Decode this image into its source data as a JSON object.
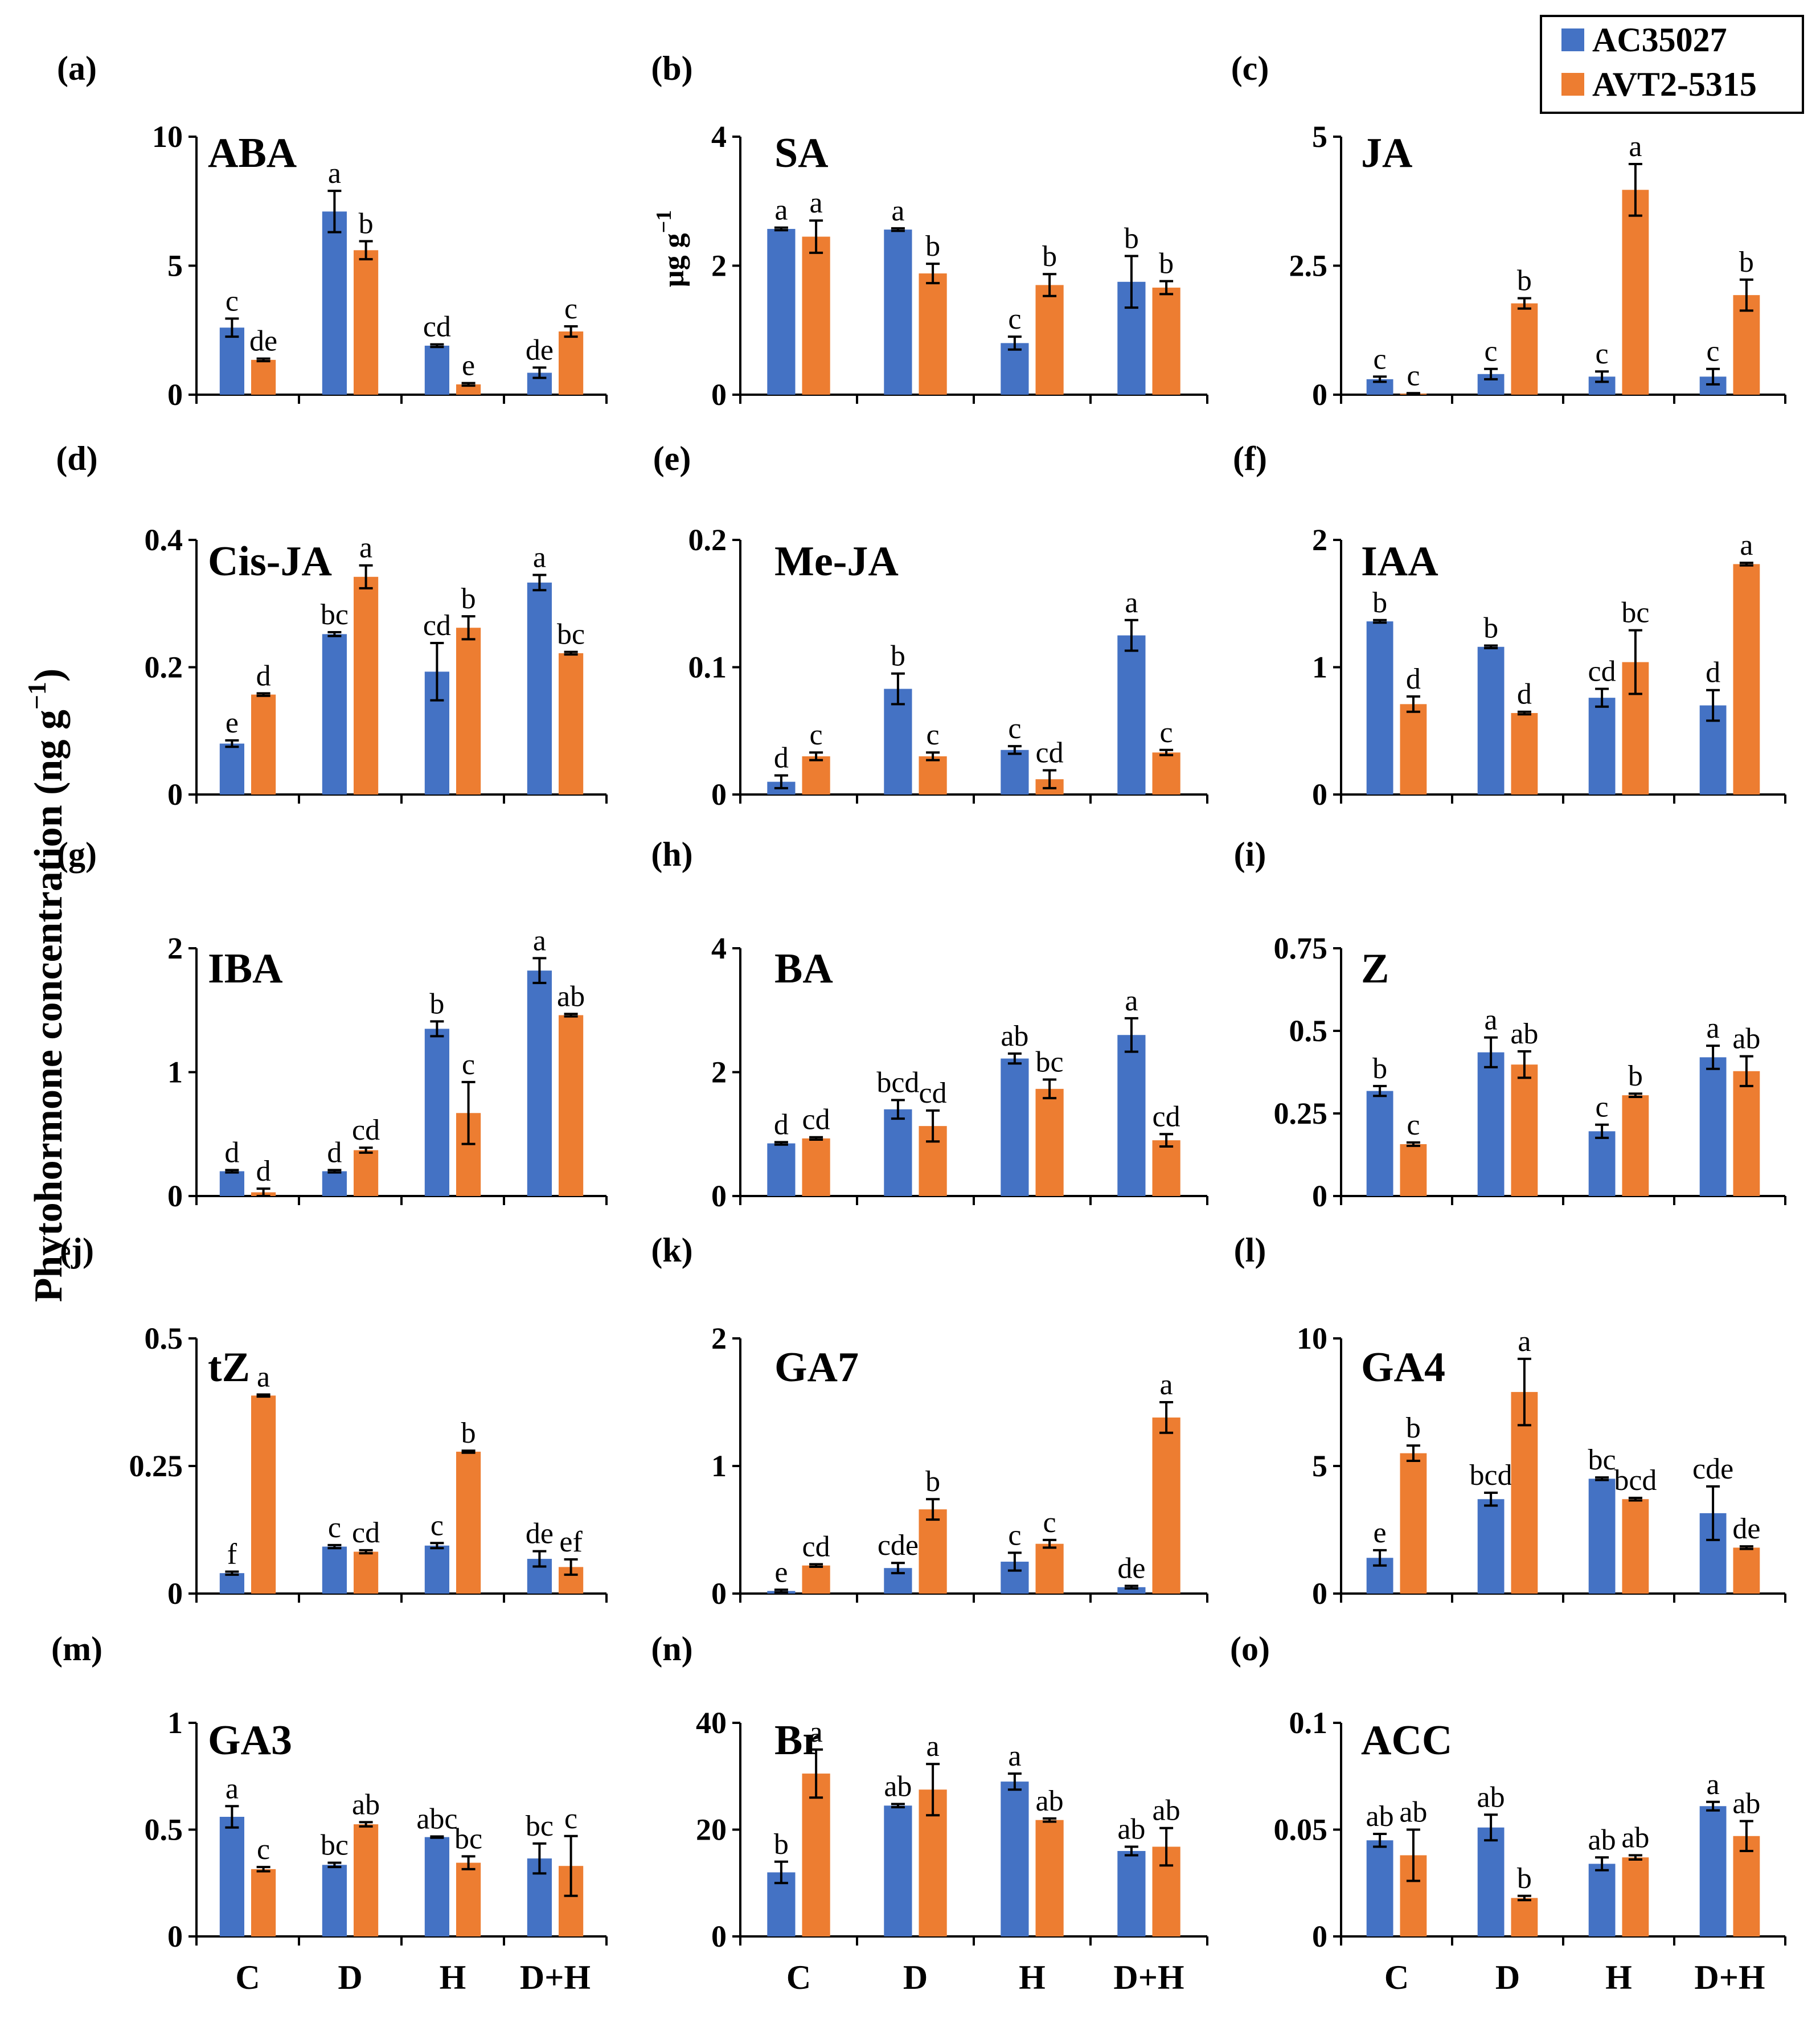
{
  "figure": {
    "y_axis_label": "Phytohormone concentration (ng g",
    "y_axis_label_sup": "−1",
    "y_axis_label_close": ")",
    "legend": [
      {
        "name": "AC35027",
        "color": "#4472C4"
      },
      {
        "name": "AVT2-5315",
        "color": "#ED7D31"
      }
    ]
  },
  "chart_data": [
    {
      "type": "bar",
      "panel": "(a)",
      "title": "ABA",
      "categories": [
        "C",
        "D",
        "H",
        "D+H"
      ],
      "ylim": [
        0,
        10
      ],
      "yticks": [
        "0",
        "5",
        "10"
      ],
      "series": [
        {
          "name": "AC35027",
          "values": [
            2.6,
            7.1,
            1.9,
            0.85
          ],
          "errors": [
            0.35,
            0.8,
            0.05,
            0.2
          ],
          "letters": [
            "c",
            "a",
            "cd",
            "de"
          ]
        },
        {
          "name": "AVT2-5315",
          "values": [
            1.35,
            5.6,
            0.4,
            2.45
          ],
          "errors": [
            0.05,
            0.35,
            0.05,
            0.2
          ],
          "letters": [
            "de",
            "b",
            "e",
            "c"
          ]
        }
      ]
    },
    {
      "type": "bar",
      "panel": "(b)",
      "title": "SA",
      "unit": "µg g",
      "unit_sup": "−1",
      "categories": [
        "C",
        "D",
        "H",
        "D+H"
      ],
      "ylim": [
        0,
        4
      ],
      "yticks": [
        "0",
        "2",
        "4"
      ],
      "series": [
        {
          "name": "AC35027",
          "values": [
            2.57,
            2.56,
            0.8,
            1.75
          ],
          "errors": [
            0.02,
            0.02,
            0.1,
            0.4
          ],
          "letters": [
            "a",
            "a",
            "c",
            "b"
          ]
        },
        {
          "name": "AVT2-5315",
          "values": [
            2.45,
            1.88,
            1.7,
            1.66
          ],
          "errors": [
            0.25,
            0.15,
            0.17,
            0.1
          ],
          "letters": [
            "a",
            "b",
            "b",
            "b"
          ]
        }
      ]
    },
    {
      "type": "bar",
      "panel": "(c)",
      "title": "JA",
      "categories": [
        "C",
        "D",
        "H",
        "D+H"
      ],
      "ylim": [
        0,
        5
      ],
      "yticks": [
        "0",
        "2.5",
        "5"
      ],
      "series": [
        {
          "name": "AC35027",
          "values": [
            0.3,
            0.4,
            0.35,
            0.35
          ],
          "errors": [
            0.05,
            0.1,
            0.1,
            0.15
          ],
          "letters": [
            "c",
            "c",
            "c",
            "c"
          ]
        },
        {
          "name": "AVT2-5315",
          "values": [
            0.02,
            1.77,
            3.97,
            1.93
          ],
          "errors": [
            0.01,
            0.1,
            0.5,
            0.3
          ],
          "letters": [
            "c",
            "b",
            "a",
            "b"
          ]
        }
      ]
    },
    {
      "type": "bar",
      "panel": "(d)",
      "title": "Cis-JA",
      "categories": [
        "C",
        "D",
        "H",
        "D+H"
      ],
      "ylim": [
        0,
        0.4
      ],
      "yticks": [
        "0",
        "0.2",
        "0.4"
      ],
      "series": [
        {
          "name": "AC35027",
          "values": [
            0.08,
            0.252,
            0.193,
            0.333
          ],
          "errors": [
            0.005,
            0.003,
            0.045,
            0.012
          ],
          "letters": [
            "e",
            "bc",
            "cd",
            "a"
          ]
        },
        {
          "name": "AVT2-5315",
          "values": [
            0.157,
            0.342,
            0.262,
            0.222
          ],
          "errors": [
            0.002,
            0.018,
            0.018,
            0.002
          ],
          "letters": [
            "d",
            "a",
            "b",
            "bc"
          ]
        }
      ]
    },
    {
      "type": "bar",
      "panel": "(e)",
      "title": "Me-JA",
      "categories": [
        "C",
        "D",
        "H",
        "D+H"
      ],
      "ylim": [
        0,
        0.2
      ],
      "yticks": [
        "0",
        "0.1",
        "0.2"
      ],
      "series": [
        {
          "name": "AC35027",
          "values": [
            0.01,
            0.083,
            0.035,
            0.125
          ],
          "errors": [
            0.005,
            0.012,
            0.003,
            0.012
          ],
          "letters": [
            "d",
            "b",
            "c",
            "a"
          ]
        },
        {
          "name": "AVT2-5315",
          "values": [
            0.03,
            0.03,
            0.012,
            0.033
          ],
          "errors": [
            0.003,
            0.003,
            0.007,
            0.002
          ],
          "letters": [
            "c",
            "c",
            "cd",
            "c"
          ]
        }
      ]
    },
    {
      "type": "bar",
      "panel": "(f)",
      "title": "IAA",
      "categories": [
        "C",
        "D",
        "H",
        "D+H"
      ],
      "ylim": [
        0,
        2
      ],
      "yticks": [
        "0",
        "1",
        "2"
      ],
      "series": [
        {
          "name": "AC35027",
          "values": [
            1.36,
            1.16,
            0.76,
            0.7
          ],
          "errors": [
            0.01,
            0.01,
            0.07,
            0.12
          ],
          "letters": [
            "b",
            "b",
            "cd",
            "d"
          ]
        },
        {
          "name": "AVT2-5315",
          "values": [
            0.71,
            0.64,
            1.04,
            1.81
          ],
          "errors": [
            0.06,
            0.01,
            0.25,
            0.01
          ],
          "letters": [
            "d",
            "d",
            "bc",
            "a"
          ]
        }
      ]
    },
    {
      "type": "bar",
      "panel": "(g)",
      "title": "IBA",
      "categories": [
        "C",
        "D",
        "H",
        "D+H"
      ],
      "ylim": [
        0,
        2
      ],
      "yticks": [
        "0",
        "1",
        "2"
      ],
      "series": [
        {
          "name": "AC35027",
          "values": [
            0.2,
            0.2,
            1.35,
            1.82
          ],
          "errors": [
            0.01,
            0.01,
            0.06,
            0.1
          ],
          "letters": [
            "d",
            "d",
            "b",
            "a"
          ]
        },
        {
          "name": "AVT2-5315",
          "values": [
            0.03,
            0.37,
            0.67,
            1.46
          ],
          "errors": [
            0.03,
            0.02,
            0.25,
            0.01
          ],
          "letters": [
            "d",
            "cd",
            "c",
            "ab"
          ]
        }
      ]
    },
    {
      "type": "bar",
      "panel": "(h)",
      "title": "BA",
      "categories": [
        "C",
        "D",
        "H",
        "D+H"
      ],
      "ylim": [
        0,
        4
      ],
      "yticks": [
        "0",
        "2",
        "4"
      ],
      "series": [
        {
          "name": "AC35027",
          "values": [
            0.85,
            1.4,
            2.22,
            2.6
          ],
          "errors": [
            0.02,
            0.15,
            0.08,
            0.27
          ],
          "letters": [
            "d",
            "bcd",
            "ab",
            "a"
          ]
        },
        {
          "name": "AVT2-5315",
          "values": [
            0.93,
            1.13,
            1.73,
            0.9
          ],
          "errors": [
            0.02,
            0.25,
            0.15,
            0.1
          ],
          "letters": [
            "cd",
            "cd",
            "bc",
            "cd"
          ]
        }
      ]
    },
    {
      "type": "bar",
      "panel": "(i)",
      "title": "Z",
      "categories": [
        "C",
        "D",
        "H",
        "D+H"
      ],
      "ylim": [
        0,
        0.75
      ],
      "yticks": [
        "0",
        "0.25",
        "0.5",
        "0.75"
      ],
      "series": [
        {
          "name": "AC35027",
          "values": [
            0.318,
            0.435,
            0.196,
            0.42
          ],
          "errors": [
            0.015,
            0.045,
            0.02,
            0.035
          ],
          "letters": [
            "b",
            "a",
            "c",
            "a"
          ]
        },
        {
          "name": "AVT2-5315",
          "values": [
            0.157,
            0.398,
            0.305,
            0.378
          ],
          "errors": [
            0.005,
            0.04,
            0.005,
            0.045
          ],
          "letters": [
            "c",
            "ab",
            "b",
            "ab"
          ]
        }
      ]
    },
    {
      "type": "bar",
      "panel": "(j)",
      "title": "tZ",
      "categories": [
        "C",
        "D",
        "H",
        "D+H"
      ],
      "ylim": [
        0,
        0.5
      ],
      "yticks": [
        "0",
        "0.25",
        "0.5"
      ],
      "series": [
        {
          "name": "AC35027",
          "values": [
            0.04,
            0.092,
            0.094,
            0.068
          ],
          "errors": [
            0.003,
            0.003,
            0.005,
            0.015
          ],
          "letters": [
            "f",
            "c",
            "c",
            "de"
          ]
        },
        {
          "name": "AVT2-5315",
          "values": [
            0.388,
            0.082,
            0.278,
            0.052
          ],
          "errors": [
            0.002,
            0.003,
            0.002,
            0.015
          ],
          "letters": [
            "a",
            "cd",
            "b",
            "ef"
          ]
        }
      ]
    },
    {
      "type": "bar",
      "panel": "(k)",
      "title": "GA7",
      "categories": [
        "C",
        "D",
        "H",
        "D+H"
      ],
      "ylim": [
        0,
        2
      ],
      "yticks": [
        "0",
        "1",
        "2"
      ],
      "series": [
        {
          "name": "AC35027",
          "values": [
            0.02,
            0.2,
            0.25,
            0.05
          ],
          "errors": [
            0.01,
            0.04,
            0.07,
            0.01
          ],
          "letters": [
            "e",
            "cde",
            "c",
            "de"
          ]
        },
        {
          "name": "AVT2-5315",
          "values": [
            0.22,
            0.66,
            0.39,
            1.38
          ],
          "errors": [
            0.01,
            0.08,
            0.03,
            0.12
          ],
          "letters": [
            "cd",
            "b",
            "c",
            "a"
          ]
        }
      ]
    },
    {
      "type": "bar",
      "panel": "(l)",
      "title": "GA4",
      "categories": [
        "C",
        "D",
        "H",
        "D+H"
      ],
      "ylim": [
        0,
        10
      ],
      "yticks": [
        "0",
        "5",
        "10"
      ],
      "series": [
        {
          "name": "AC35027",
          "values": [
            1.4,
            3.7,
            4.5,
            3.15
          ],
          "errors": [
            0.3,
            0.25,
            0.05,
            1.05
          ],
          "letters": [
            "e",
            "bcd",
            "bc",
            "cde"
          ]
        },
        {
          "name": "AVT2-5315",
          "values": [
            5.5,
            7.9,
            3.7,
            1.8
          ],
          "errors": [
            0.3,
            1.3,
            0.05,
            0.05
          ],
          "letters": [
            "b",
            "a",
            "bcd",
            "de"
          ]
        }
      ]
    },
    {
      "type": "bar",
      "panel": "(m)",
      "title": "GA3",
      "categories": [
        "C",
        "D",
        "H",
        "D+H"
      ],
      "ylim": [
        0,
        1
      ],
      "yticks": [
        "0",
        "0.5",
        "1"
      ],
      "series": [
        {
          "name": "AC35027",
          "values": [
            0.56,
            0.335,
            0.465,
            0.365
          ],
          "errors": [
            0.05,
            0.01,
            0.003,
            0.07
          ],
          "letters": [
            "a",
            "bc",
            "abc",
            "bc"
          ]
        },
        {
          "name": "AVT2-5315",
          "values": [
            0.315,
            0.525,
            0.345,
            0.33
          ],
          "errors": [
            0.01,
            0.01,
            0.03,
            0.14
          ],
          "letters": [
            "c",
            "ab",
            "bc",
            "c"
          ]
        }
      ]
    },
    {
      "type": "bar",
      "panel": "(n)",
      "title": "Br",
      "categories": [
        "C",
        "D",
        "H",
        "D+H"
      ],
      "ylim": [
        0,
        40
      ],
      "yticks": [
        "0",
        "20",
        "40"
      ],
      "series": [
        {
          "name": "AC35027",
          "values": [
            12,
            24.5,
            29,
            16
          ],
          "errors": [
            2,
            0.3,
            1.5,
            0.8
          ],
          "letters": [
            "b",
            "ab",
            "a",
            "ab"
          ]
        },
        {
          "name": "AVT2-5315",
          "values": [
            30.5,
            27.5,
            21.8,
            16.8
          ],
          "errors": [
            4.5,
            4.8,
            0.3,
            3.5
          ],
          "letters": [
            "a",
            "a",
            "ab",
            "ab"
          ]
        }
      ]
    },
    {
      "type": "bar",
      "panel": "(o)",
      "title": "ACC",
      "categories": [
        "C",
        "D",
        "H",
        "D+H"
      ],
      "ylim": [
        0,
        0.1
      ],
      "yticks": [
        "0",
        "0.05",
        "0.1"
      ],
      "series": [
        {
          "name": "AC35027",
          "values": [
            0.045,
            0.051,
            0.034,
            0.061
          ],
          "errors": [
            0.003,
            0.006,
            0.003,
            0.002
          ],
          "letters": [
            "ab",
            "ab",
            "ab",
            "a"
          ]
        },
        {
          "name": "AVT2-5315",
          "values": [
            0.038,
            0.018,
            0.037,
            0.047
          ],
          "errors": [
            0.012,
            0.001,
            0.001,
            0.007
          ],
          "letters": [
            "ab",
            "b",
            "ab",
            "ab"
          ]
        }
      ]
    }
  ]
}
